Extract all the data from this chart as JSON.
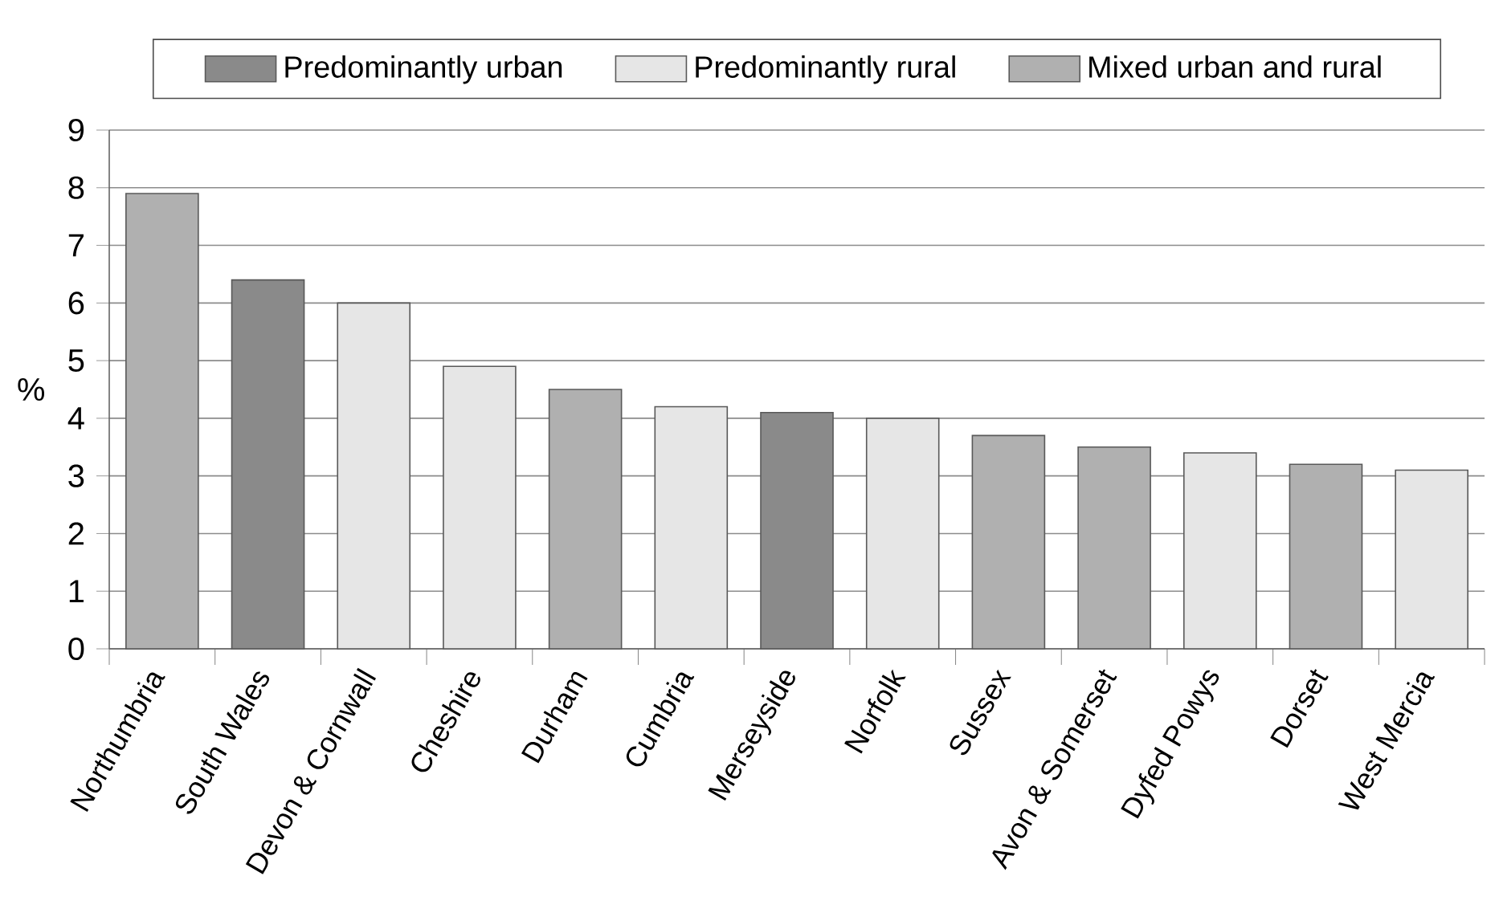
{
  "chart_data": {
    "type": "bar",
    "ylabel": "%",
    "categories": [
      "Northumbria",
      "South Wales",
      "Devon & Cornwall",
      "Cheshire",
      "Durham",
      "Cumbria",
      "Merseyside",
      "Norfolk",
      "Sussex",
      "Avon & Somerset",
      "Dyfed Powys",
      "Dorset",
      "West Mercia"
    ],
    "series": [
      {
        "name": "Predominantly urban",
        "color": "#8a8a8a",
        "values": [
          null,
          6.4,
          null,
          null,
          null,
          null,
          4.1,
          null,
          null,
          null,
          null,
          null,
          null
        ]
      },
      {
        "name": "Predominantly rural",
        "color": "#e6e6e6",
        "values": [
          null,
          null,
          6.0,
          4.9,
          null,
          4.2,
          null,
          4.0,
          null,
          null,
          3.4,
          null,
          3.1
        ]
      },
      {
        "name": "Mixed urban and rural",
        "color": "#b0b0b0",
        "values": [
          7.9,
          null,
          null,
          null,
          4.5,
          null,
          null,
          null,
          3.7,
          3.5,
          null,
          3.2,
          null
        ]
      }
    ],
    "ylim": [
      0,
      9
    ],
    "yticks": [
      0,
      1,
      2,
      3,
      4,
      5,
      6,
      7,
      8,
      9
    ],
    "grid": "y",
    "legend": "top"
  }
}
